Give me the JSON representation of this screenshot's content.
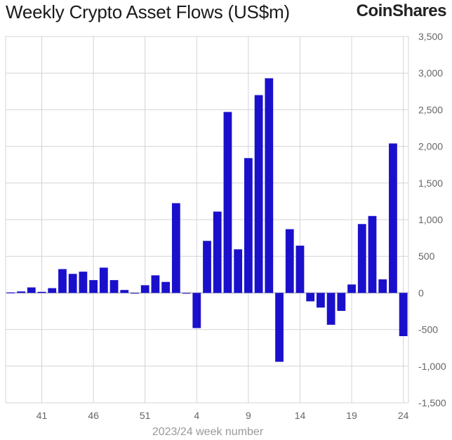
{
  "header": {
    "title": "Weekly Crypto Asset Flows (US$m)",
    "brand": "CoinShares"
  },
  "chart_data": {
    "type": "bar",
    "title": "Weekly Crypto Asset Flows (US$m)",
    "xlabel": "2023/24 week number",
    "ylabel": "",
    "ylim": [
      -1500,
      3500
    ],
    "y_ticks": [
      "3,500",
      "3,000",
      "2,500",
      "2,000",
      "1,500",
      "1,000",
      "500",
      "0",
      "-500",
      "-1,000",
      "-1,500"
    ],
    "y_tick_values": [
      3500,
      3000,
      2500,
      2000,
      1500,
      1000,
      500,
      0,
      -500,
      -1000,
      -1500
    ],
    "x_tick_labels": [
      "41",
      "46",
      "51",
      "4",
      "9",
      "14",
      "19",
      "24"
    ],
    "x_tick_indices": [
      3,
      8,
      13,
      18,
      23,
      28,
      33,
      38
    ],
    "grid": true,
    "bar_color": "#1a10cc",
    "categories": [
      "38",
      "39",
      "40",
      "41",
      "42",
      "43",
      "44",
      "45",
      "46",
      "47",
      "48",
      "49",
      "50",
      "51",
      "52",
      "1",
      "2",
      "3",
      "4",
      "5",
      "6",
      "7",
      "8",
      "9",
      "10",
      "11",
      "12",
      "13",
      "14",
      "15",
      "16",
      "17",
      "18",
      "19",
      "20",
      "21",
      "22",
      "23",
      "24"
    ],
    "values": [
      0,
      20,
      75,
      15,
      65,
      325,
      260,
      290,
      175,
      345,
      175,
      40,
      -10,
      105,
      240,
      150,
      1225,
      -10,
      -480,
      710,
      1110,
      2470,
      595,
      1840,
      2700,
      2930,
      -940,
      870,
      645,
      -115,
      -200,
      -435,
      -245,
      115,
      940,
      1050,
      185,
      2040,
      -590
    ]
  }
}
